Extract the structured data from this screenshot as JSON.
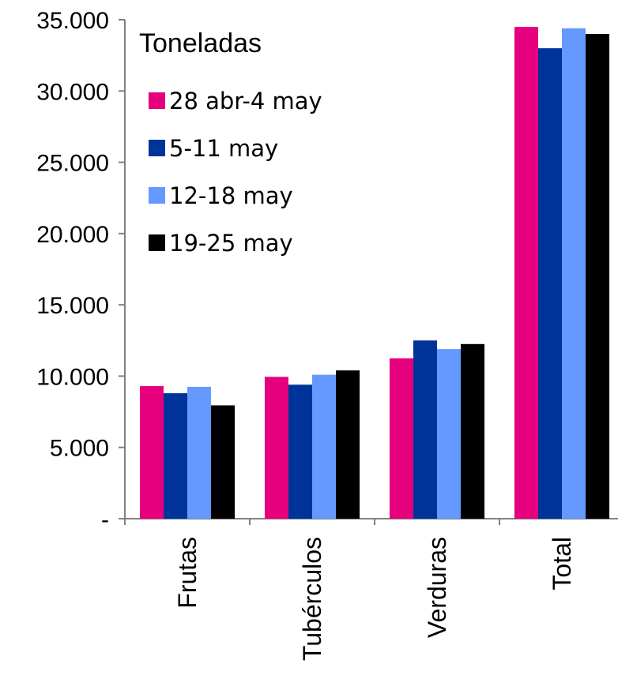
{
  "chart_data": {
    "type": "bar",
    "title": "",
    "xlabel": "",
    "ylabel": "",
    "legend_title": "Toneladas",
    "legend_position": "top-left",
    "categories": [
      "Frutas",
      "Tubérculos",
      "Verduras",
      "Total"
    ],
    "series": [
      {
        "name": "28 abr-4 may",
        "color": "#e6007e",
        "values": [
          9300,
          9950,
          11250,
          34500
        ]
      },
      {
        "name": "5-11 may",
        "color": "#003399",
        "values": [
          8800,
          9400,
          12500,
          33000
        ]
      },
      {
        "name": "12-18 may",
        "color": "#6699ff",
        "values": [
          9250,
          10100,
          11900,
          34400
        ]
      },
      {
        "name": "19-25 may",
        "color": "#000000",
        "values": [
          7950,
          10400,
          12250,
          34000
        ]
      }
    ],
    "ylim": [
      0,
      35000
    ],
    "yticks": [
      0,
      5000,
      10000,
      15000,
      20000,
      25000,
      30000,
      35000
    ],
    "ytick_labels": [
      "-",
      "5.000",
      "10.000",
      "15.000",
      "20.000",
      "25.000",
      "30.000",
      "35.000"
    ],
    "grid": false
  }
}
